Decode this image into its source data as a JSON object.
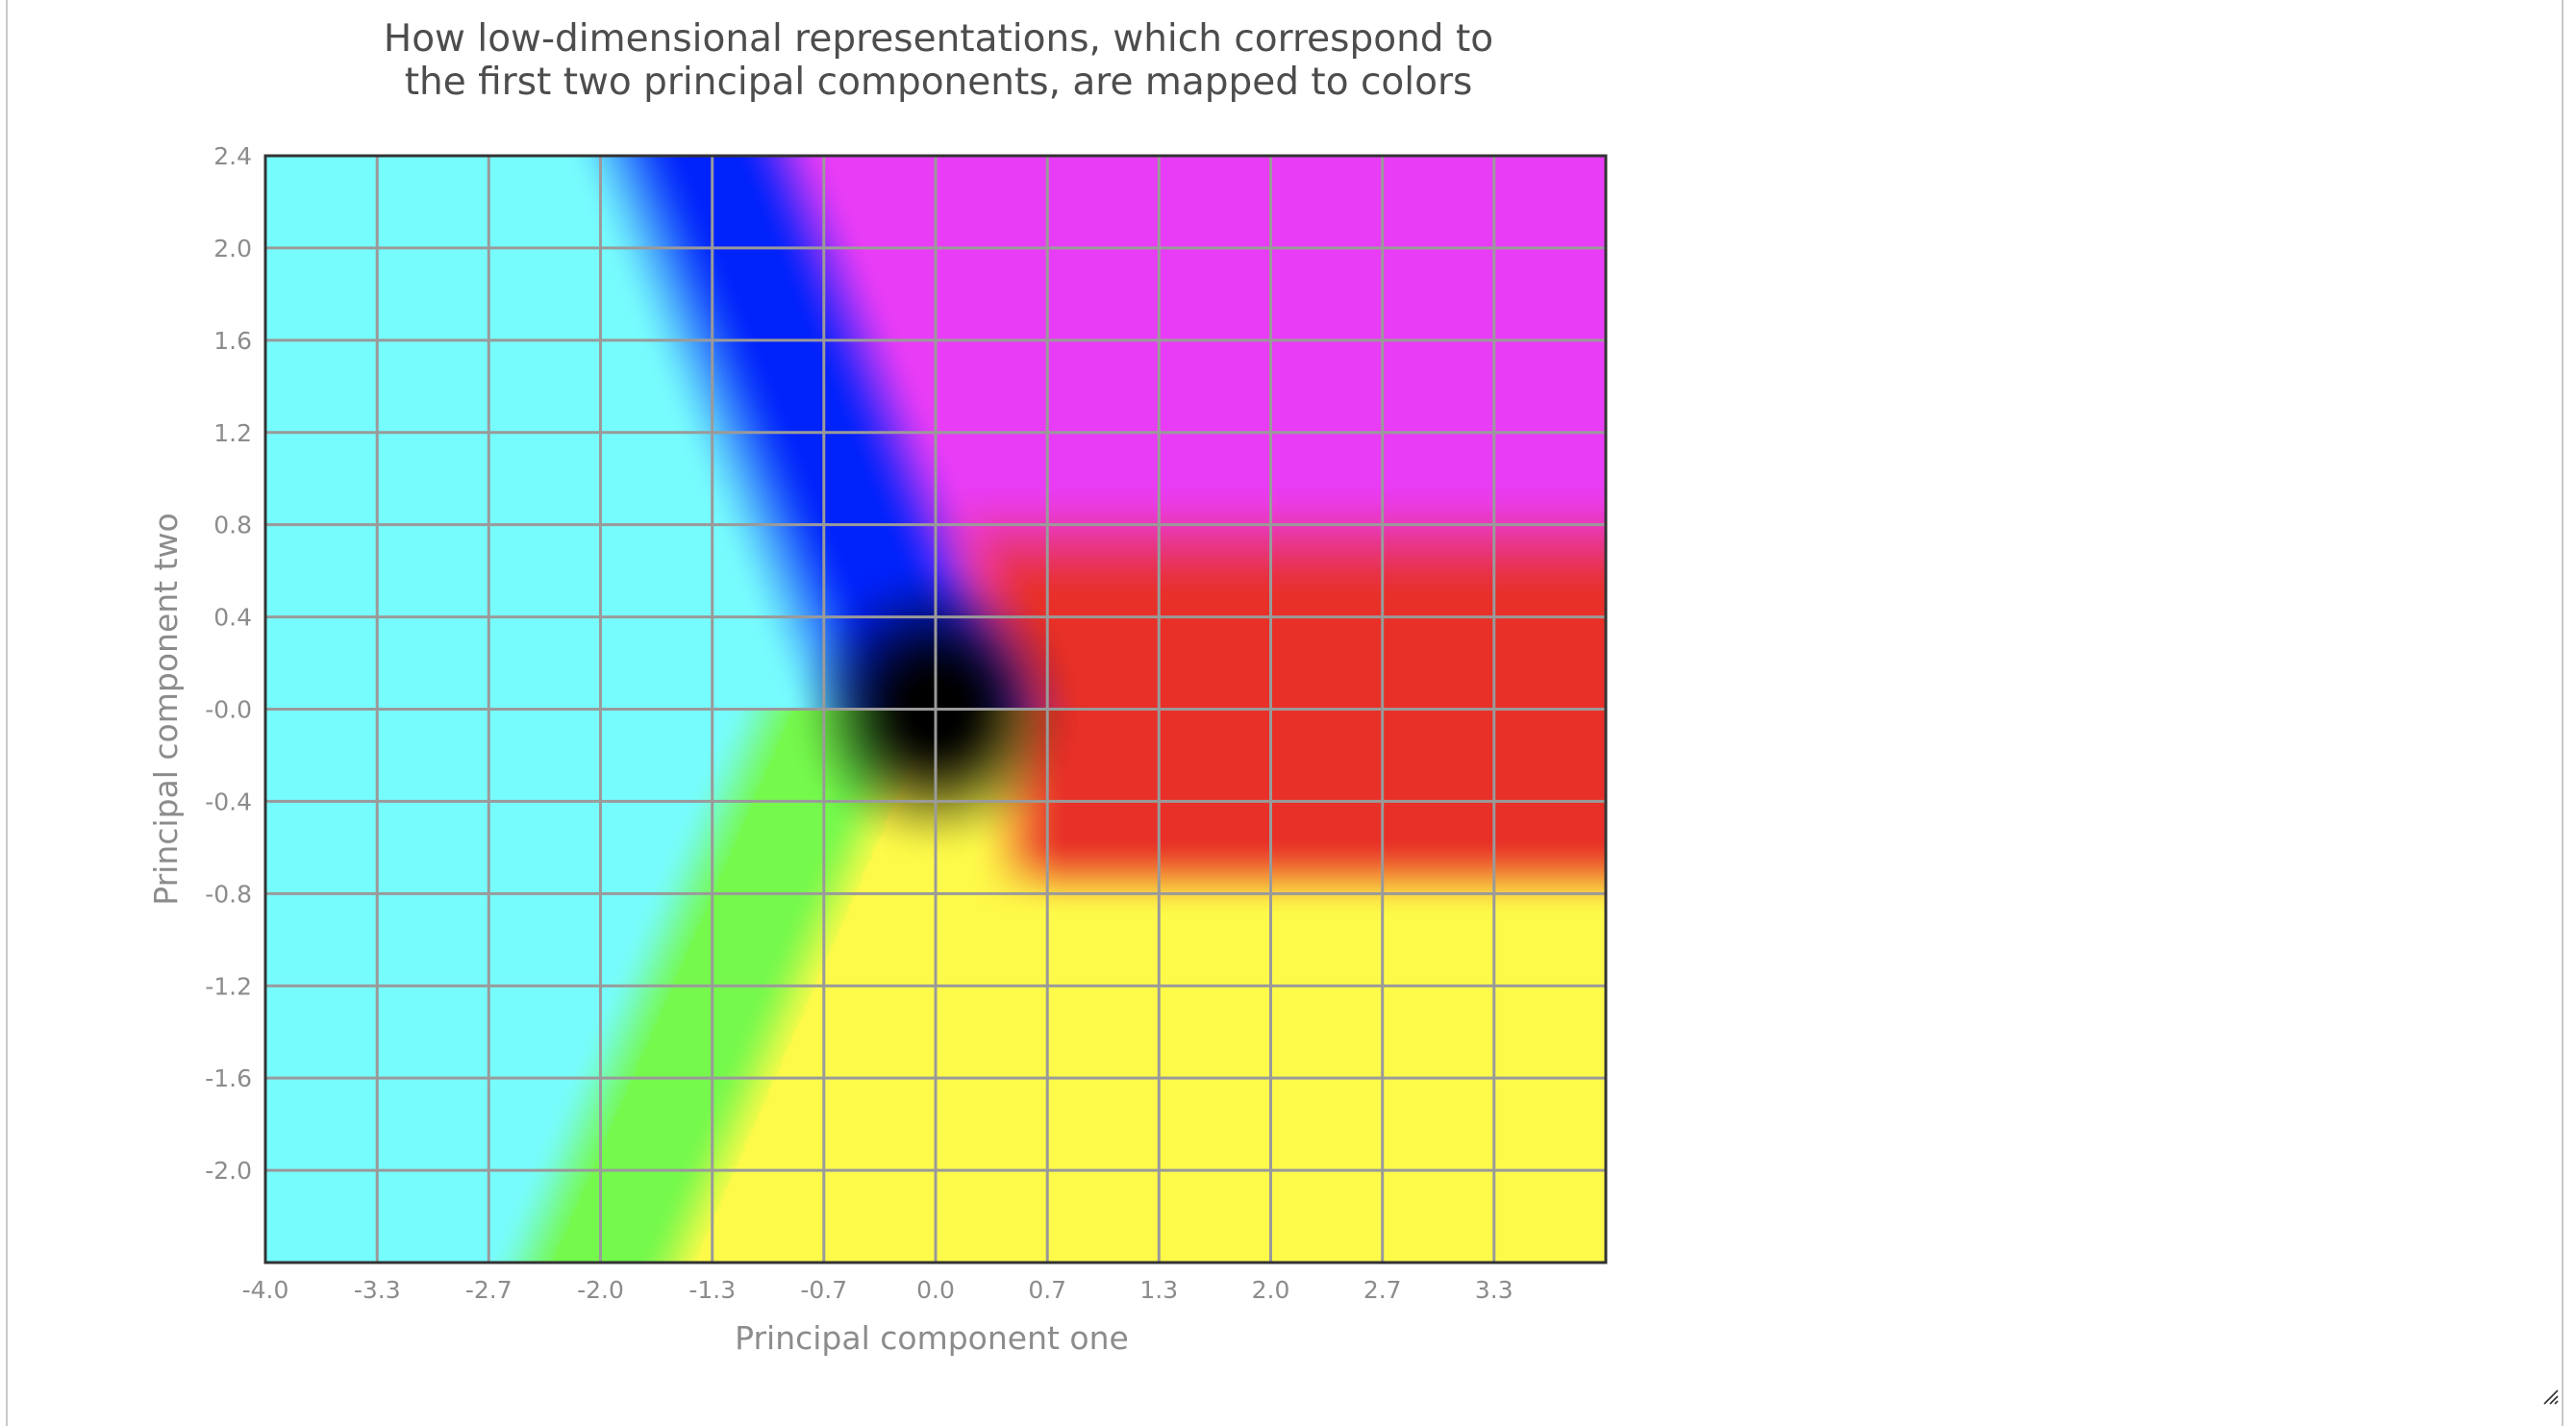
{
  "chart_data": {
    "type": "heatmap",
    "title": "How low-dimensional representations, which correspond to the first two principal components, are mapped to colors",
    "title_lines": [
      "How low-dimensional representations, which correspond to",
      "the first two principal components, are mapped to colors"
    ],
    "xlabel": "Principal component one",
    "ylabel": "Principal component two",
    "xlim": [
      -4.0,
      4.0
    ],
    "ylim": [
      -2.4,
      2.4
    ],
    "x_ticks": [
      -4.0,
      -3.333,
      -2.667,
      -2.0,
      -1.333,
      -0.667,
      0.0,
      0.667,
      1.333,
      2.0,
      2.667,
      3.333
    ],
    "x_tick_labels": [
      "-4.0",
      "-3.3",
      "-2.7",
      "-2.0",
      "-1.3",
      "-0.7",
      "0.0",
      "0.7",
      "1.3",
      "2.0",
      "2.7",
      "3.3"
    ],
    "y_ticks": [
      2.4,
      2.0,
      1.6,
      1.2,
      0.8,
      0.4,
      0.0,
      -0.4,
      -0.8,
      -1.2,
      -1.6,
      -2.0
    ],
    "y_tick_labels": [
      "2.4",
      "2.0",
      "1.6",
      "1.2",
      "0.8",
      "0.4",
      "-0.0",
      "-0.4",
      "-0.8",
      "-1.2",
      "-1.6",
      "-2.0"
    ],
    "grid": true,
    "color_regions": [
      {
        "color": "#77fcfd",
        "region": "left"
      },
      {
        "color": "#0022fb",
        "region": "upper-left diagonal band"
      },
      {
        "color": "#e93cf6",
        "region": "upper-right"
      },
      {
        "color": "#e83028",
        "region": "right, near PC2 = 0"
      },
      {
        "color": "#fefa49",
        "region": "lower-right"
      },
      {
        "color": "#75f94c",
        "region": "lower-left diagonal band"
      },
      {
        "color": "#000000",
        "region": "origin"
      }
    ]
  },
  "colors": {
    "cyan": "#77fcfd",
    "blue": "#0022fb",
    "magenta": "#e93cf6",
    "red": "#e83028",
    "yellow": "#fefa49",
    "green": "#75f94c",
    "center": "#000000",
    "grid": "#9a9a9a",
    "tick_text": "#8c8c8c"
  }
}
